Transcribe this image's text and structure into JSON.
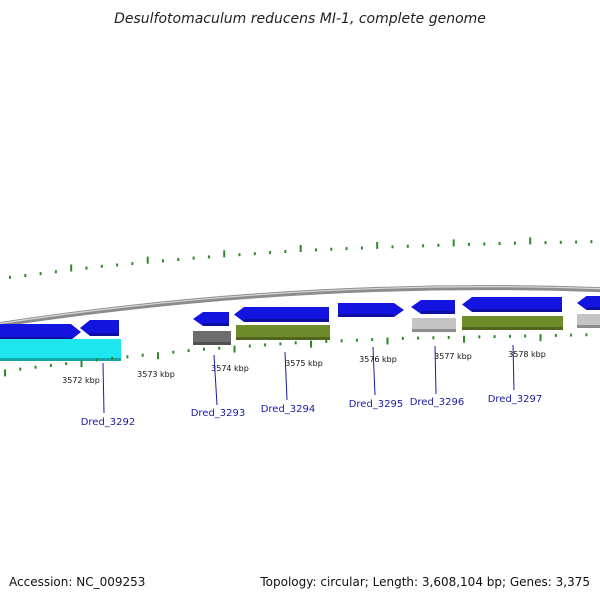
{
  "title": "Desulfotomaculum reducens MI-1, complete genome",
  "accession": "Accession: NC_009253",
  "summary": "Topology: circular; Length: 3,608,104 bp; Genes: 3,375",
  "colors": {
    "backbone": "#8c8c8c",
    "cds": "#1414e0",
    "cyan": "#1ee6ee",
    "olive": "#6e8c2a",
    "dark_grey": "#6e6e6e",
    "light_grey": "#c4c4c4",
    "tick": "#2a8a2a",
    "label": "#1a1aa6"
  },
  "positions": [
    "3572 kbp",
    "3573 kbp",
    "3574 kbp",
    "3575 kbp",
    "3576 kbp",
    "3577 kbp",
    "3578 kbp"
  ],
  "genes": [
    "Dred_3292",
    "Dred_3293",
    "Dred_3294",
    "Dred_3295",
    "Dred_3296",
    "Dred_3297"
  ]
}
